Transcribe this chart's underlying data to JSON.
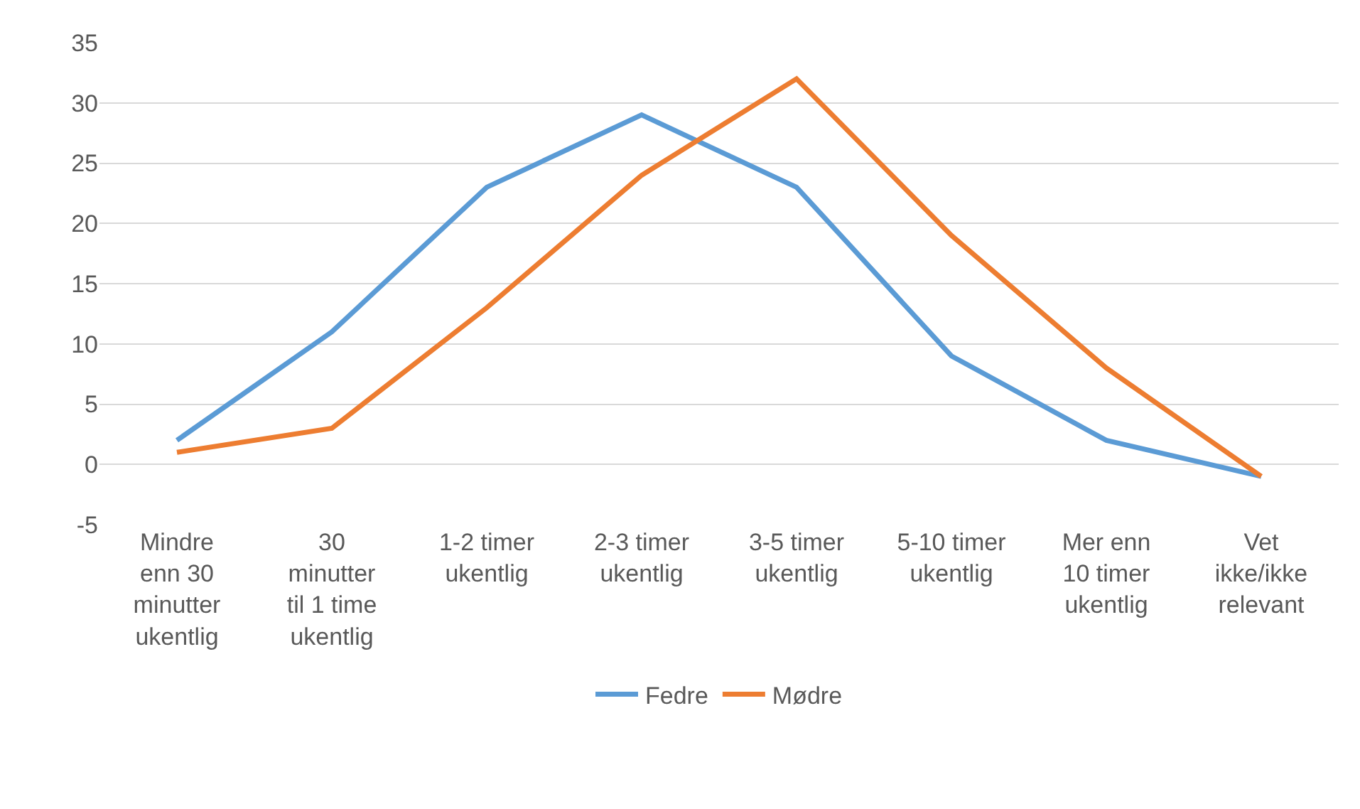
{
  "chart_data": {
    "type": "line",
    "categories": [
      "Mindre\nenn 30\nminutter\nukentlig",
      "30\nminutter\ntil 1 time\nukentlig",
      "1-2 timer\nukentlig",
      "2-3 timer\nukentlig",
      "3-5 timer\nukentlig",
      "5-10 timer\nukentlig",
      "Mer enn\n10 timer\nukentlig",
      "Vet\nikke/ikke\nrelevant"
    ],
    "series": [
      {
        "name": "Fedre",
        "color": "#5b9bd5",
        "values": [
          2,
          11,
          23,
          29,
          23,
          9,
          2,
          -1
        ]
      },
      {
        "name": "Mødre",
        "color": "#ed7d31",
        "values": [
          1,
          3,
          13,
          24,
          32,
          19,
          8,
          -1
        ]
      }
    ],
    "ylim": [
      -5,
      35
    ],
    "yticks": [
      -5,
      0,
      5,
      10,
      15,
      20,
      25,
      30,
      35
    ],
    "grid": "y",
    "legend": "bottom",
    "marker": "none",
    "line_style": "solid"
  }
}
